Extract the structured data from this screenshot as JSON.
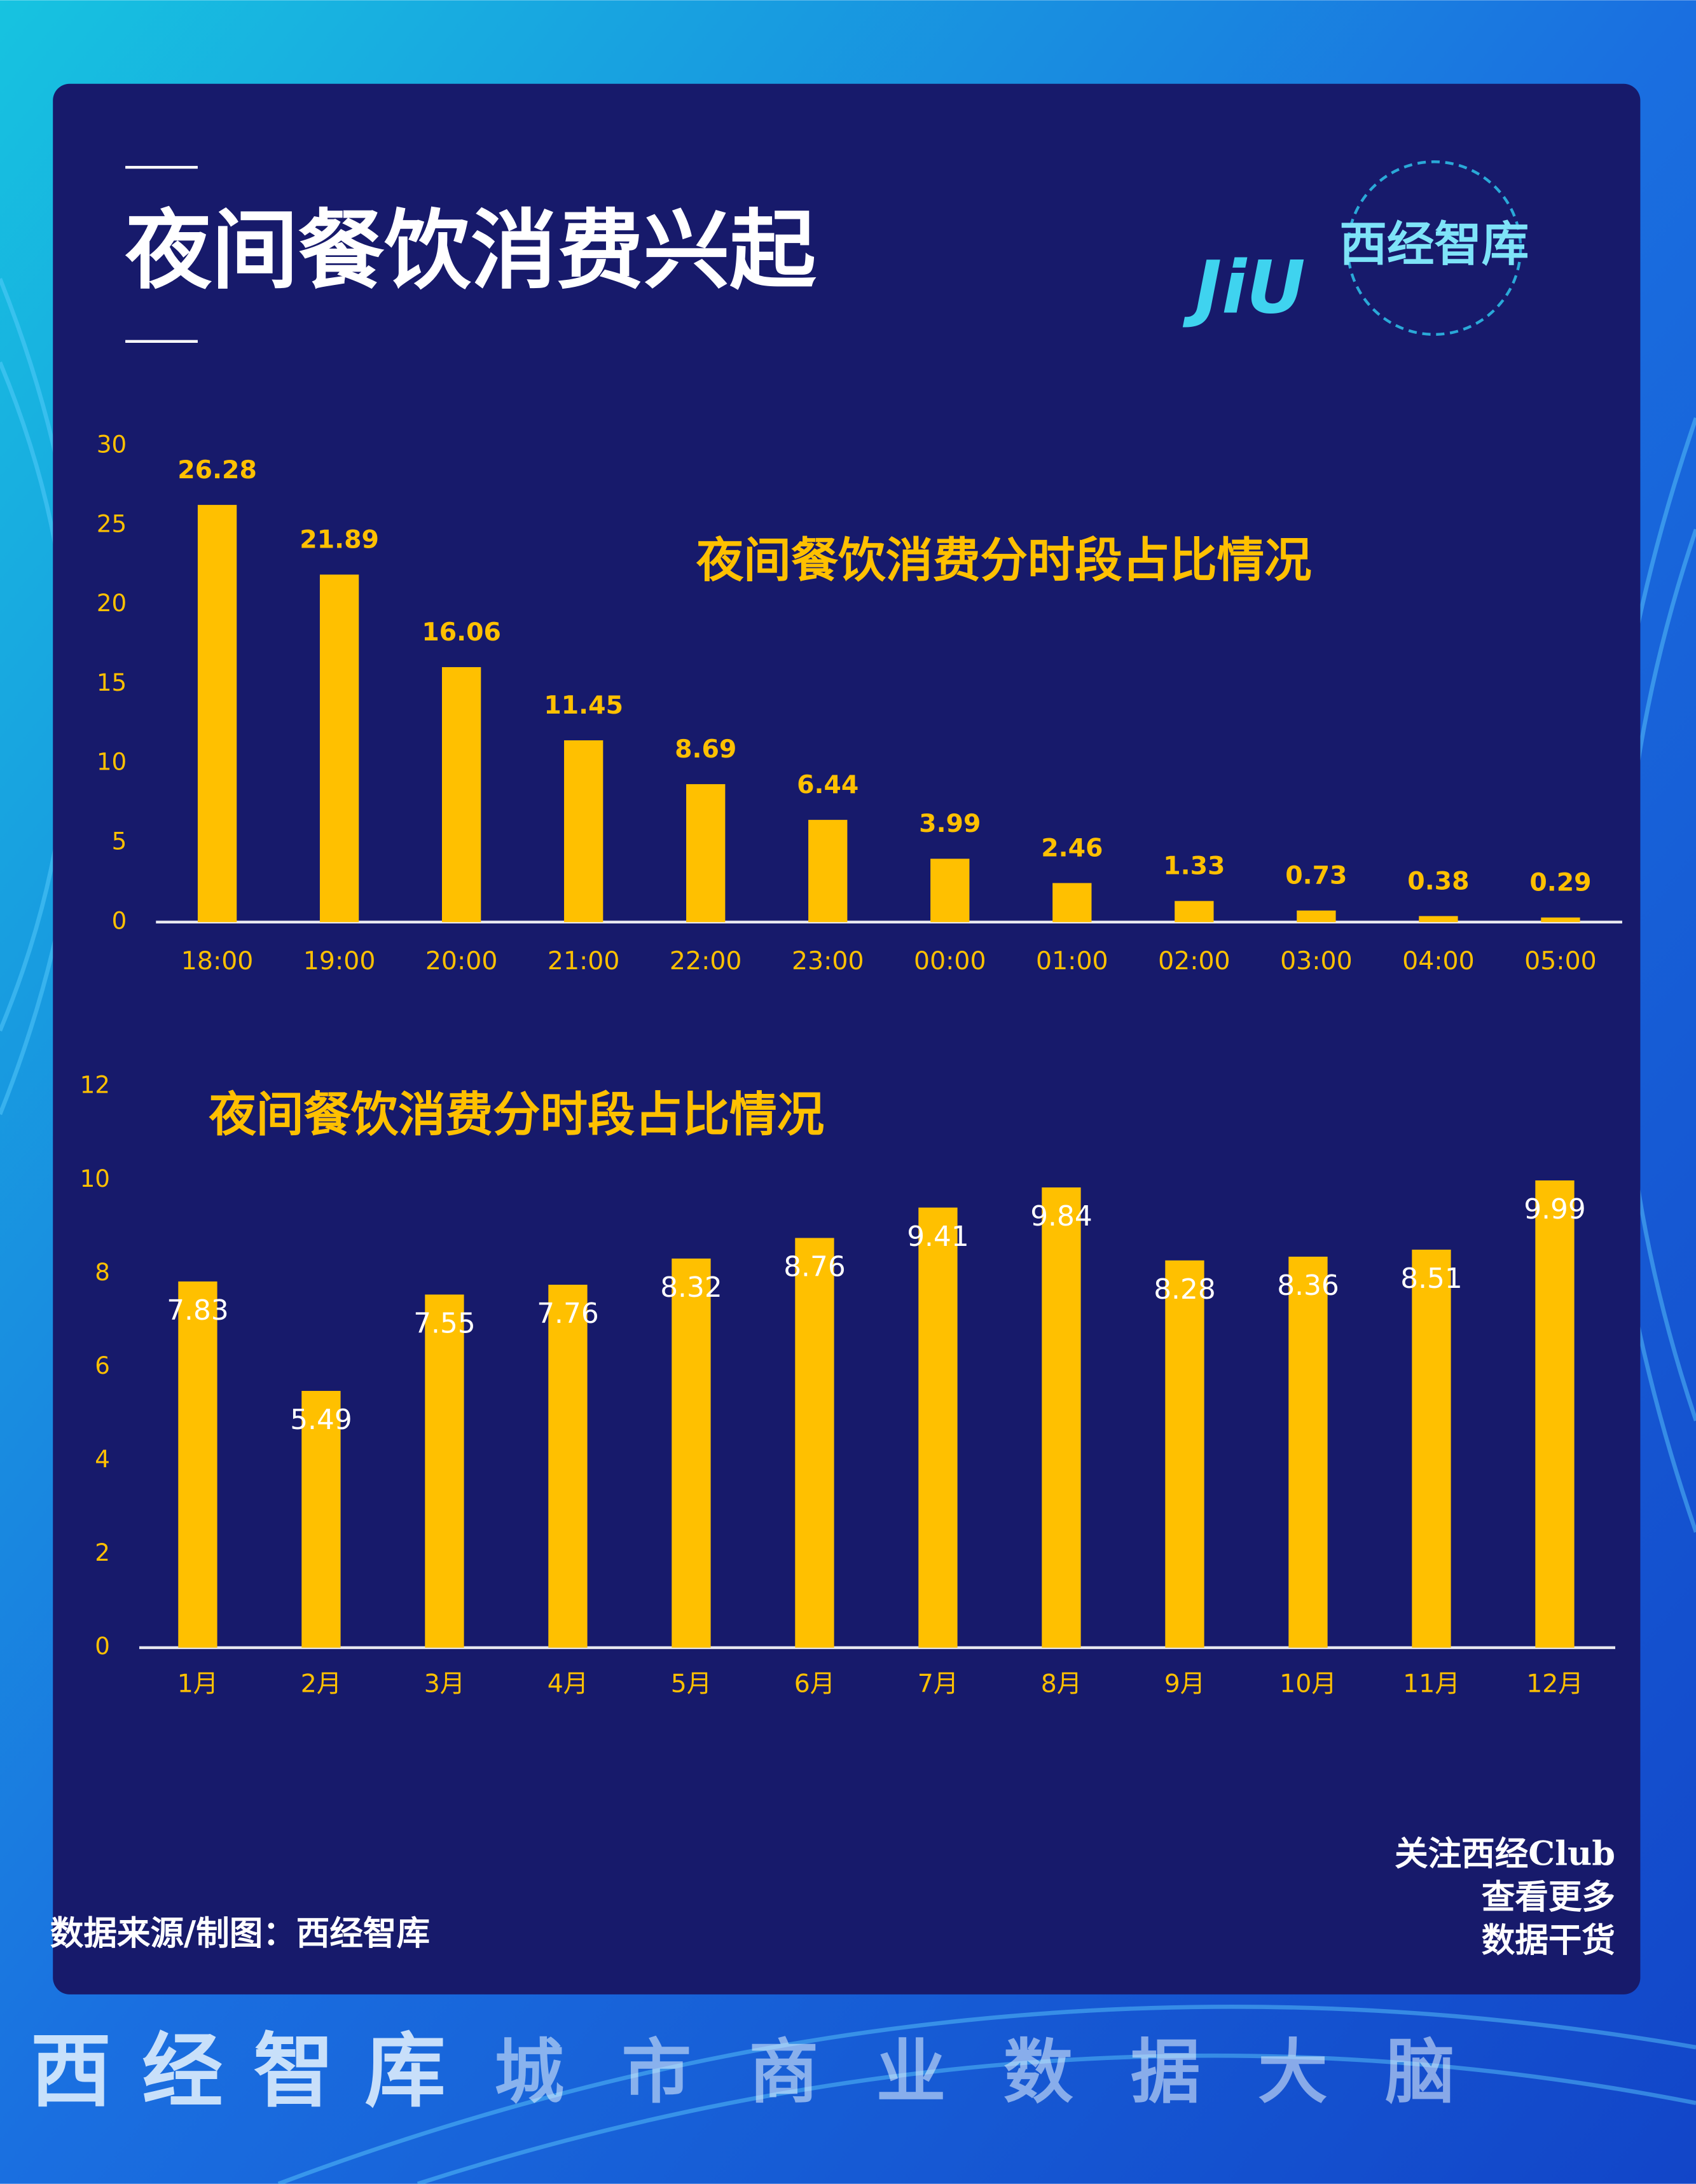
{
  "header": {
    "title": "夜间餐饮消费兴起",
    "logo_text": "JiU",
    "logo_brand": "西经智库"
  },
  "chart_data": [
    {
      "type": "bar",
      "title": "夜间餐饮消费分时段占比情况",
      "categories": [
        "18:00",
        "19:00",
        "20:00",
        "21:00",
        "22:00",
        "23:00",
        "00:00",
        "01:00",
        "02:00",
        "03:00",
        "04:00",
        "05:00"
      ],
      "values": [
        26.28,
        21.89,
        16.06,
        11.45,
        8.69,
        6.44,
        3.99,
        2.46,
        1.33,
        0.73,
        0.38,
        0.29
      ],
      "color": "#ffc000",
      "ylim": [
        0,
        30
      ],
      "yticks": [
        0,
        5,
        10,
        15,
        20,
        25,
        30
      ],
      "grid": false
    },
    {
      "type": "bar",
      "title": "夜间餐饮消费分时段占比情况",
      "categories": [
        "1月",
        "2月",
        "3月",
        "4月",
        "5月",
        "6月",
        "7月",
        "8月",
        "9月",
        "10月",
        "11月",
        "12月"
      ],
      "values": [
        7.83,
        5.49,
        7.55,
        7.76,
        8.32,
        8.76,
        9.41,
        9.84,
        8.28,
        8.36,
        8.51,
        9.99
      ],
      "color": "#ffc000",
      "ylim": [
        0,
        12
      ],
      "yticks": [
        0,
        2,
        4,
        6,
        8,
        10,
        12
      ],
      "grid": false
    }
  ],
  "footer": {
    "source": "数据来源/制图：西经智库",
    "follow": [
      "关注西经Club",
      "查看更多",
      "数据干货"
    ],
    "banner_brand": "西经智库",
    "banner_slogan": "城 市 商 业 数 据 大 脑"
  }
}
